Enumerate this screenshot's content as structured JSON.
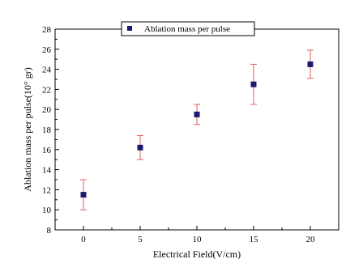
{
  "chart_data": {
    "type": "scatter",
    "xlabel": "Electrical Field(V/cm)",
    "ylabel": "Ablation mass per pulse(10° gr)",
    "xlim": [
      -2.5,
      22.5
    ],
    "ylim": [
      8,
      28
    ],
    "xticks": [
      0,
      5,
      10,
      15,
      20
    ],
    "yticks": [
      8,
      10,
      12,
      14,
      16,
      18,
      20,
      22,
      24,
      26,
      28
    ],
    "legend": "top",
    "series": [
      {
        "name": "Ablation mass per pulse",
        "x": [
          0,
          5,
          10,
          15,
          20
        ],
        "y": [
          11.5,
          16.2,
          19.5,
          22.5,
          24.5
        ],
        "err_low": [
          10.0,
          15.0,
          18.5,
          20.5,
          23.1
        ],
        "err_high": [
          13.0,
          17.4,
          20.5,
          24.5,
          25.9
        ]
      }
    ],
    "colors": {
      "marker": "#1a1a6e",
      "errorbar": "#e06060"
    }
  }
}
